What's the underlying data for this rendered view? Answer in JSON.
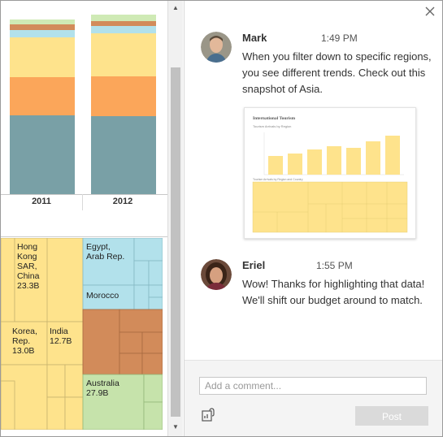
{
  "viz": {
    "years": [
      "2011",
      "2012"
    ],
    "treemap_labels": {
      "hongkong": [
        "Hong",
        "Kong",
        "SAR,",
        "China",
        "23.3B"
      ],
      "egypt": [
        "Egypt,",
        "Arab Rep."
      ],
      "morocco": "Morocco",
      "korea": [
        "Korea,",
        "Rep.",
        "13.0B"
      ],
      "india": [
        "India",
        "12.7B"
      ],
      "australia": [
        "Australia",
        "27.9B"
      ]
    },
    "colors": {
      "teal": "#79A0A6",
      "orange": "#FBA65A",
      "yellow": "#FEE38C",
      "lightblue": "#B2E1EB",
      "brown": "#D28B5A",
      "green": "#C6E3AB",
      "lightgreen": "#CFEAB5"
    }
  },
  "panel": {
    "close_icon": "close-icon",
    "comments": [
      {
        "name": "Mark",
        "time": "1:49 PM",
        "text": "When you filter down to specific regions, you see different trends. Check out this snapshot of Asia."
      },
      {
        "name": "Eriel",
        "time": "1:55 PM",
        "text": "Wow! Thanks for highlighting that data! We'll shift our budget around to match."
      }
    ],
    "snapshot": {
      "title": "International Tourism",
      "subtitle1": "Tourism Arrivals by Region",
      "subtitle2": "Tourism Arrivals by Region and Country"
    },
    "input_placeholder": "Add a comment...",
    "post_label": "Post"
  }
}
